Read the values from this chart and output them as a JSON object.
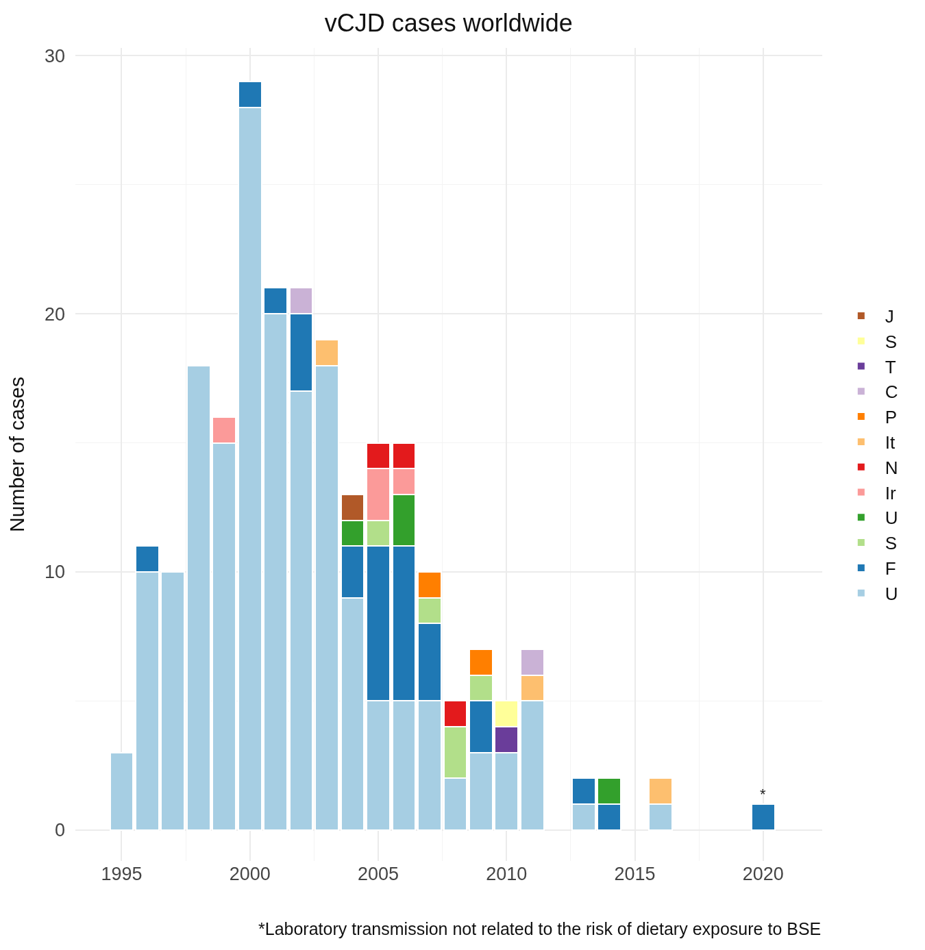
{
  "chart_data": {
    "type": "bar",
    "title": "vCJD cases worldwide",
    "ylabel": "Number of cases",
    "stacked": true,
    "x": [
      1995,
      1996,
      1997,
      1998,
      1999,
      2000,
      2001,
      2002,
      2003,
      2004,
      2005,
      2006,
      2007,
      2008,
      2009,
      2010,
      2011,
      2012,
      2013,
      2014,
      2015,
      2016,
      2017,
      2018,
      2019,
      2020
    ],
    "series": [
      {
        "name": "U",
        "color": "#a6cee3",
        "values": [
          3,
          10,
          10,
          18,
          15,
          28,
          20,
          17,
          18,
          9,
          5,
          5,
          5,
          2,
          3,
          3,
          5,
          null,
          1,
          null,
          null,
          1,
          null,
          null,
          null,
          null
        ]
      },
      {
        "name": "F",
        "color": "#1f78b4",
        "values": [
          null,
          1,
          null,
          null,
          null,
          1,
          1,
          3,
          null,
          2,
          6,
          6,
          3,
          null,
          2,
          null,
          null,
          null,
          1,
          1,
          null,
          null,
          null,
          null,
          null,
          1
        ]
      },
      {
        "name": "S",
        "color": "#b2df8a",
        "values": [
          null,
          null,
          null,
          null,
          null,
          null,
          null,
          null,
          null,
          null,
          1,
          null,
          1,
          2,
          1,
          null,
          null,
          null,
          null,
          null,
          null,
          null,
          null,
          null,
          null,
          null
        ]
      },
      {
        "name": "U",
        "color": "#33a02c",
        "values": [
          null,
          null,
          null,
          null,
          null,
          null,
          null,
          null,
          null,
          1,
          null,
          2,
          null,
          null,
          null,
          null,
          null,
          null,
          null,
          1,
          null,
          null,
          null,
          null,
          null,
          null
        ]
      },
      {
        "name": "Ir",
        "color": "#fb9a99",
        "values": [
          null,
          null,
          null,
          null,
          1,
          null,
          null,
          null,
          null,
          null,
          2,
          1,
          null,
          null,
          null,
          null,
          null,
          null,
          null,
          null,
          null,
          null,
          null,
          null,
          null,
          null
        ]
      },
      {
        "name": "N",
        "color": "#e31a1c",
        "values": [
          null,
          null,
          null,
          null,
          null,
          null,
          null,
          null,
          null,
          null,
          1,
          1,
          null,
          1,
          null,
          null,
          null,
          null,
          null,
          null,
          null,
          null,
          null,
          null,
          null,
          null
        ]
      },
      {
        "name": "It",
        "color": "#fdbf6f",
        "values": [
          null,
          null,
          null,
          null,
          null,
          null,
          null,
          null,
          1,
          null,
          null,
          null,
          null,
          null,
          null,
          null,
          1,
          null,
          null,
          null,
          null,
          1,
          null,
          null,
          null,
          null
        ]
      },
      {
        "name": "P",
        "color": "#ff7f00",
        "values": [
          null,
          null,
          null,
          null,
          null,
          null,
          null,
          null,
          null,
          null,
          null,
          null,
          1,
          null,
          1,
          null,
          null,
          null,
          null,
          null,
          null,
          null,
          null,
          null,
          null,
          null
        ]
      },
      {
        "name": "C",
        "color": "#cab2d6",
        "values": [
          null,
          null,
          null,
          null,
          null,
          null,
          null,
          1,
          null,
          null,
          null,
          null,
          null,
          null,
          null,
          null,
          1,
          null,
          null,
          null,
          null,
          null,
          null,
          null,
          null,
          null
        ]
      },
      {
        "name": "T",
        "color": "#6a3d9a",
        "values": [
          null,
          null,
          null,
          null,
          null,
          null,
          null,
          null,
          null,
          null,
          null,
          null,
          null,
          null,
          null,
          1,
          null,
          null,
          null,
          null,
          null,
          null,
          null,
          null,
          null,
          null
        ]
      },
      {
        "name": "S",
        "color": "#ffff99",
        "values": [
          null,
          null,
          null,
          null,
          null,
          null,
          null,
          null,
          null,
          null,
          null,
          null,
          null,
          null,
          null,
          1,
          null,
          null,
          null,
          null,
          null,
          null,
          null,
          null,
          null,
          null
        ]
      },
      {
        "name": "J",
        "color": "#b15928",
        "values": [
          null,
          null,
          null,
          null,
          null,
          null,
          null,
          null,
          null,
          1,
          null,
          null,
          null,
          null,
          null,
          null,
          null,
          null,
          null,
          null,
          null,
          null,
          null,
          null,
          null,
          null
        ]
      }
    ],
    "xlim": [
      1993.2,
      2022.3
    ],
    "xticks": [
      1995,
      2000,
      2005,
      2010,
      2015,
      2020
    ],
    "ylim": [
      -1.2,
      30.3
    ],
    "yticks": [
      0,
      10,
      20,
      30
    ],
    "grid": true,
    "legend": "right",
    "annotations": [
      {
        "text": "*",
        "x": 2020,
        "y": 1
      },
      "*Laboratory transmission not related to the risk of dietary exposure to BSE"
    ]
  }
}
